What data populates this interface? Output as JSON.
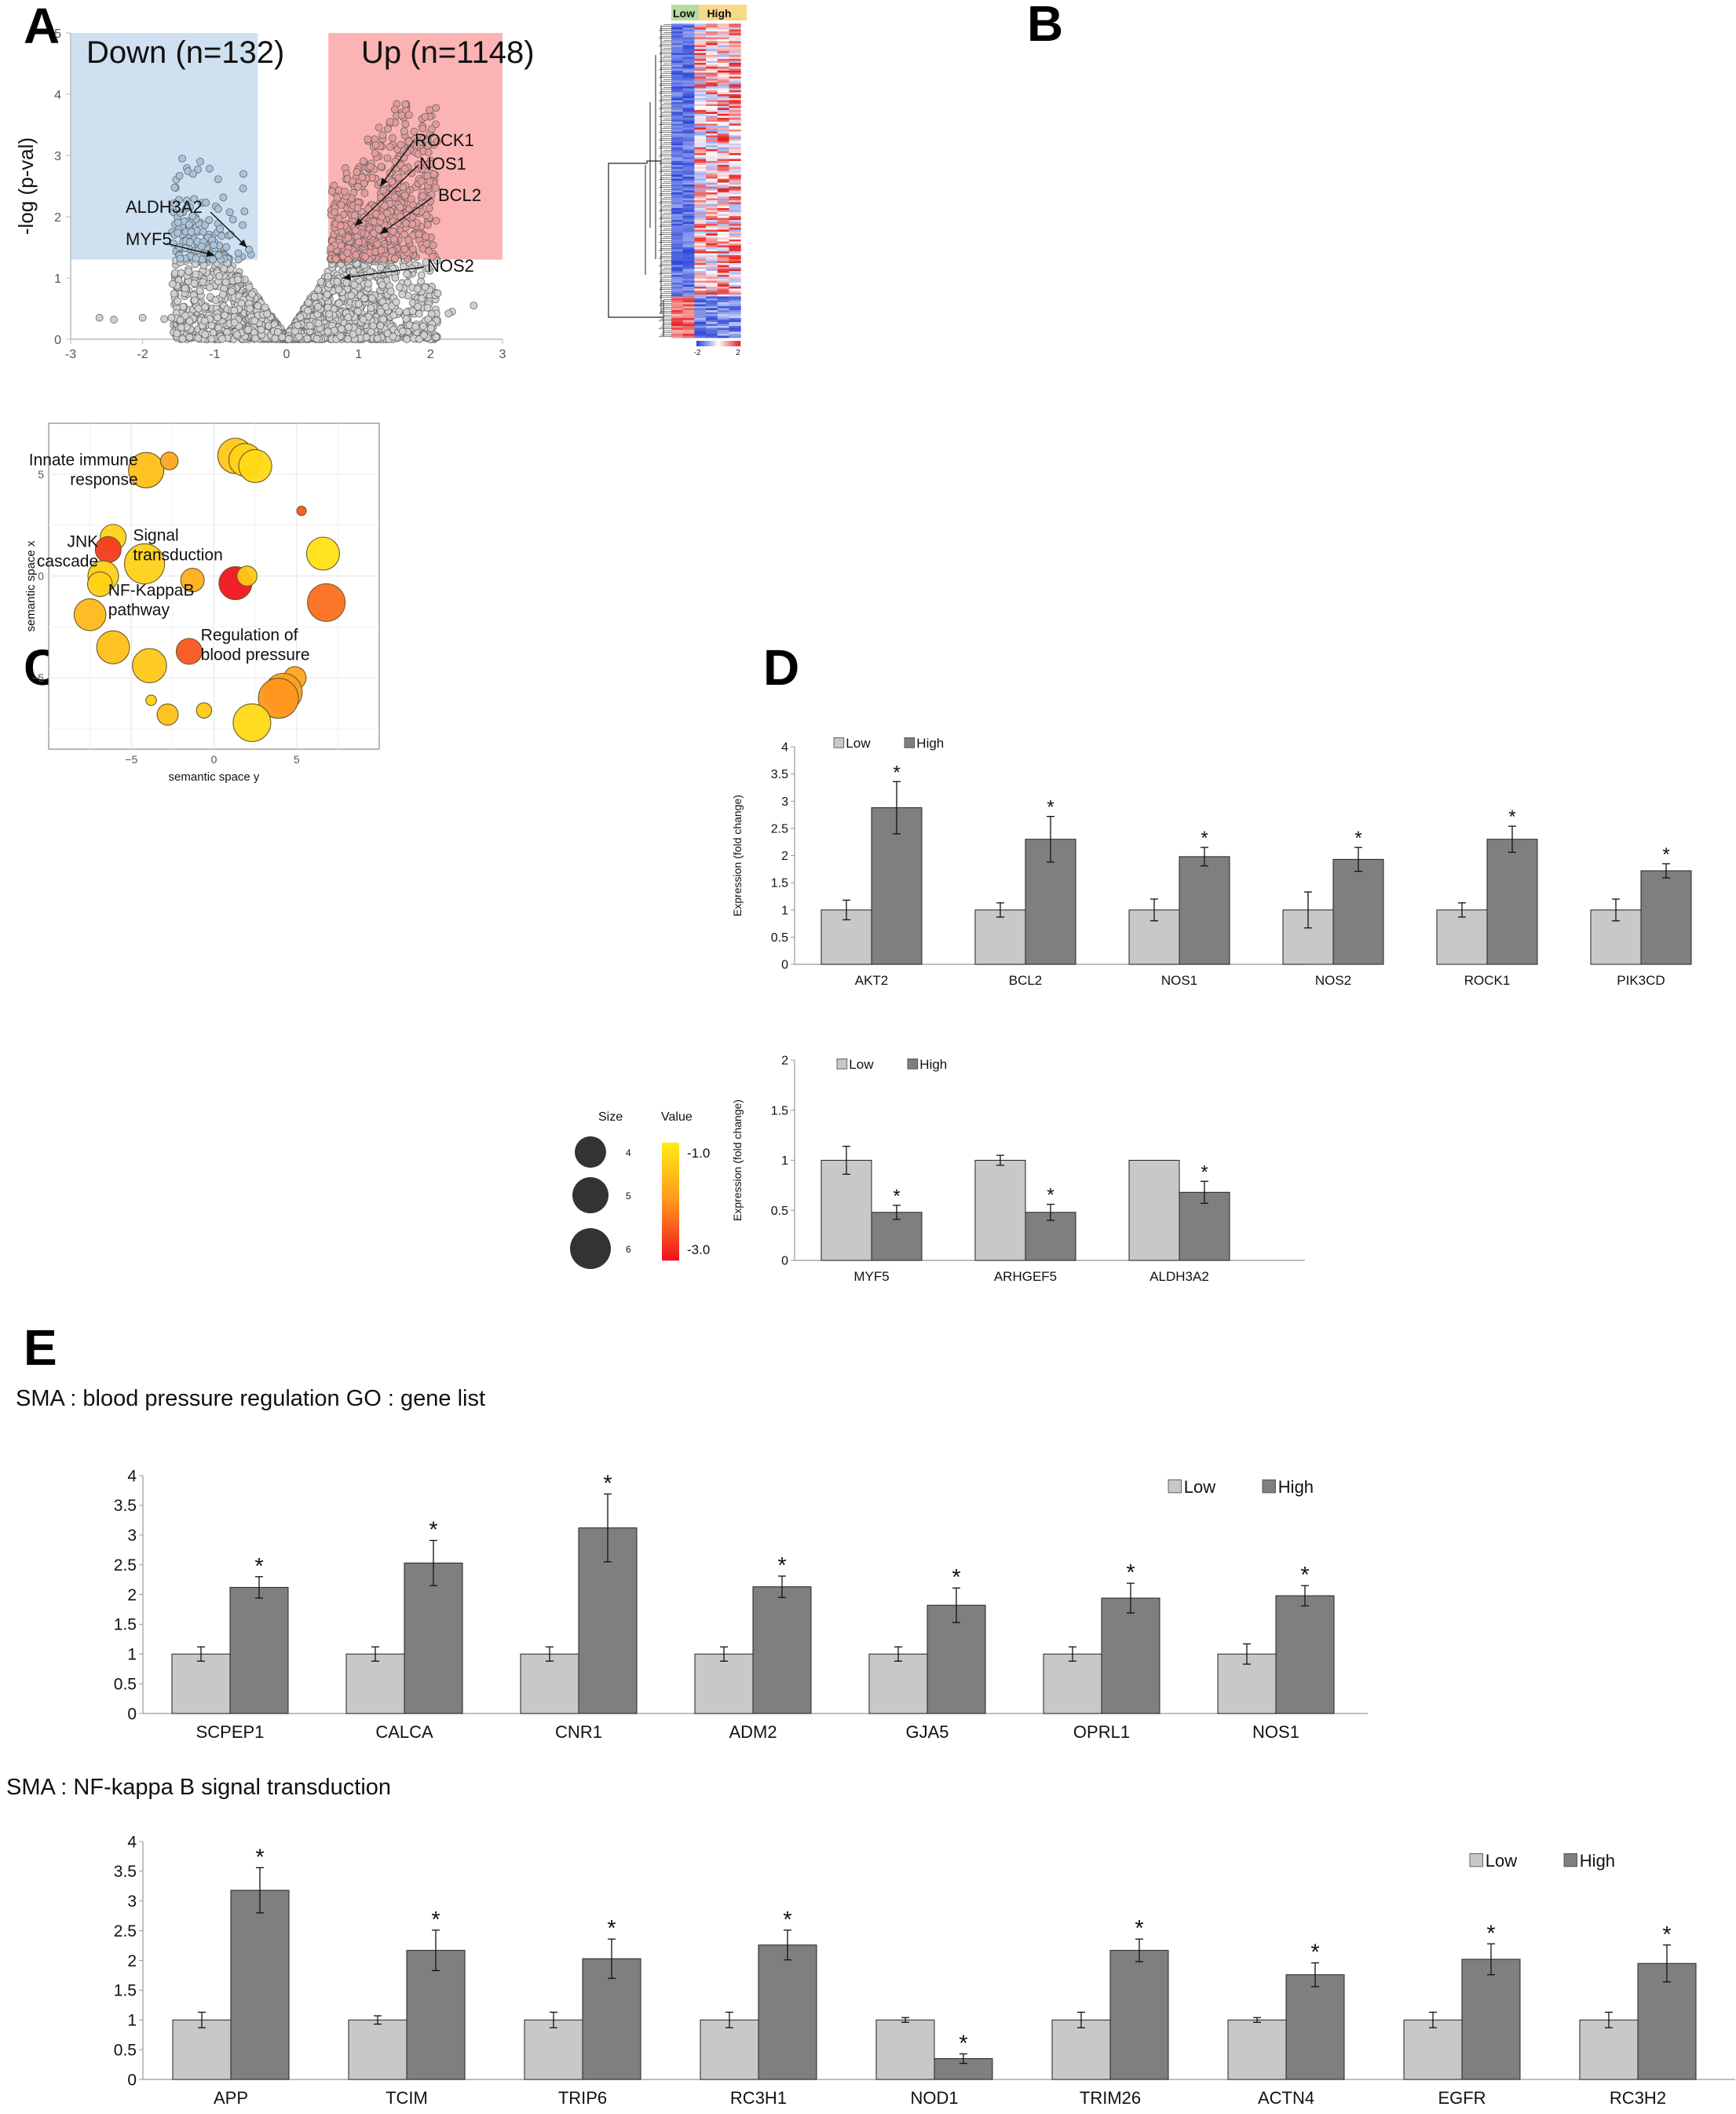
{
  "panels": {
    "a": "A",
    "b": "B",
    "c": "C",
    "d": "D",
    "e": "E"
  },
  "chart_data": [
    {
      "id": "A",
      "type": "scatter",
      "title": "",
      "xlabel": "",
      "ylabel": "-log (p-val)",
      "xlim": [
        -3,
        3
      ],
      "ylim": [
        0,
        5
      ],
      "xticks": [
        "-3",
        "-2",
        "-1",
        "0",
        "1",
        "2",
        "3"
      ],
      "yticks": [
        "0",
        "1",
        "2",
        "3",
        "4",
        "5"
      ],
      "regions": [
        {
          "label": "Down (n=132)",
          "x": [
            -3,
            -0.4
          ],
          "y": [
            1.3,
            5
          ],
          "color": "#cfe0f1"
        },
        {
          "label": "Up (n=1148)",
          "x": [
            0.58,
            3
          ],
          "y": [
            1.3,
            5
          ],
          "color": "#fbb3b3"
        }
      ],
      "annotations": [
        {
          "text": "ROCK1",
          "x": 1.3,
          "y": 2.5
        },
        {
          "text": "NOS1",
          "x": 0.95,
          "y": 1.85
        },
        {
          "text": "BCL2",
          "x": 1.3,
          "y": 1.72
        },
        {
          "text": "NOS2",
          "x": 0.78,
          "y": 1.0
        },
        {
          "text": "ALDH3A2",
          "x": -0.55,
          "y": 1.5
        },
        {
          "text": "MYF5",
          "x": -1.0,
          "y": 1.37
        }
      ],
      "colors": {
        "grey": "#d0d0d0",
        "blue": "#a9c3dc",
        "red": "#e59a9a"
      }
    },
    {
      "id": "B",
      "type": "heatmap",
      "columns_groups": [
        "Low",
        "High"
      ],
      "colorbar": {
        "min": "-2",
        "max": "2"
      },
      "colors": {
        "low": "#2b46d8",
        "mid": "#ffffff",
        "high": "#e61e1e",
        "low_group": "#b8dba4",
        "high_group": "#f8d98a"
      }
    },
    {
      "id": "C",
      "type": "scatter",
      "xlabel": "semantic space y",
      "ylabel": "semantic space x",
      "xlim": [
        -10,
        10
      ],
      "ylim": [
        -8.5,
        7.5
      ],
      "xticks": [
        -5,
        0,
        5
      ],
      "yticks": [
        5,
        0,
        -5
      ],
      "points": [
        {
          "x": -4.1,
          "y": 5.2,
          "s": 5.8,
          "v": -1.5
        },
        {
          "x": -2.7,
          "y": 5.65,
          "s": 4.3,
          "v": -1.8
        },
        {
          "x": 1.3,
          "y": 5.9,
          "s": 5.8,
          "v": -1.4
        },
        {
          "x": 1.9,
          "y": 5.7,
          "s": 5.6,
          "v": -1.3
        },
        {
          "x": 2.5,
          "y": 5.4,
          "s": 5.6,
          "v": -1.2
        },
        {
          "x": 5.3,
          "y": 3.2,
          "s": 3.6,
          "v": -2.5
        },
        {
          "x": -6.1,
          "y": 1.9,
          "s": 5.0,
          "v": -1.3
        },
        {
          "x": -6.4,
          "y": 1.3,
          "s": 5.0,
          "v": -2.7
        },
        {
          "x": -4.2,
          "y": 0.6,
          "s": 6.2,
          "v": -1.3
        },
        {
          "x": -6.7,
          "y": 0.0,
          "s": 5.4,
          "v": -1.3
        },
        {
          "x": -6.9,
          "y": -0.4,
          "s": 4.9,
          "v": -1.3
        },
        {
          "x": -1.3,
          "y": -0.2,
          "s": 4.8,
          "v": -1.7
        },
        {
          "x": 1.3,
          "y": -0.35,
          "s": 5.6,
          "v": -3.0
        },
        {
          "x": 2.0,
          "y": 0.0,
          "s": 4.5,
          "v": -1.4
        },
        {
          "x": 6.6,
          "y": 1.1,
          "s": 5.6,
          "v": -1.1
        },
        {
          "x": 6.8,
          "y": -1.3,
          "s": 6.0,
          "v": -2.3
        },
        {
          "x": -7.5,
          "y": -1.9,
          "s": 5.5,
          "v": -1.6
        },
        {
          "x": -6.1,
          "y": -3.5,
          "s": 5.6,
          "v": -1.5
        },
        {
          "x": -1.5,
          "y": -3.7,
          "s": 5.0,
          "v": -2.5
        },
        {
          "x": -3.9,
          "y": -4.4,
          "s": 5.7,
          "v": -1.4
        },
        {
          "x": 4.9,
          "y": -5.0,
          "s": 4.7,
          "v": -1.8
        },
        {
          "x": 4.2,
          "y": -5.7,
          "s": 6.0,
          "v": -1.9
        },
        {
          "x": 3.9,
          "y": -6.0,
          "s": 6.2,
          "v": -2.0
        },
        {
          "x": -3.8,
          "y": -6.1,
          "s": 3.7,
          "v": -1.3
        },
        {
          "x": -0.6,
          "y": -6.6,
          "s": 4.1,
          "v": -1.4
        },
        {
          "x": -2.8,
          "y": -6.8,
          "s": 4.6,
          "v": -1.5
        },
        {
          "x": 2.3,
          "y": -7.2,
          "s": 6.0,
          "v": -1.2
        }
      ],
      "labels": [
        {
          "lines": [
            "Innate immune",
            "response"
          ],
          "x": -4.6,
          "y": 5.2
        },
        {
          "lines": [
            "Signal",
            "transduction"
          ],
          "x": -4.9,
          "y": 1.5
        },
        {
          "lines": [
            "JNK",
            "cascade"
          ],
          "x": -7.0,
          "y": 1.2
        },
        {
          "lines": [
            "NF-KappaB",
            "pathway"
          ],
          "x": -6.4,
          "y": -1.2
        },
        {
          "lines": [
            "Regulation of",
            "blood pressure"
          ],
          "x": -0.8,
          "y": -3.4
        }
      ],
      "size_legend": {
        "title": "Size",
        "values": [
          "4",
          "5",
          "6"
        ]
      },
      "color_legend": {
        "title": "Value",
        "max": "-1.0",
        "min": "-3.0"
      }
    },
    {
      "id": "D1",
      "type": "bar",
      "ylabel": "Expression (fold change)",
      "ylim": [
        0,
        4
      ],
      "yticks": [
        "0",
        "0.5",
        "1",
        "1.5",
        "2",
        "2.5",
        "3",
        "3.5",
        "4"
      ],
      "categories": [
        "AKT2",
        "BCL2",
        "NOS1",
        "NOS2",
        "ROCK1",
        "PIK3CD"
      ],
      "series": [
        {
          "name": "Low",
          "values": [
            1,
            1,
            1,
            1,
            1,
            1
          ],
          "err": [
            0.18,
            0.13,
            0.2,
            0.33,
            0.13,
            0.2
          ]
        },
        {
          "name": "High",
          "values": [
            2.88,
            2.3,
            1.98,
            1.93,
            2.3,
            1.72
          ],
          "err": [
            0.48,
            0.42,
            0.17,
            0.22,
            0.24,
            0.13
          ]
        }
      ],
      "sig": [
        "*",
        "*",
        "*",
        "*",
        "*",
        "*"
      ]
    },
    {
      "id": "D2",
      "type": "bar",
      "ylabel": "Expression (fold change)",
      "ylim": [
        0,
        2
      ],
      "yticks": [
        "0",
        "0.5",
        "1",
        "1.5",
        "2"
      ],
      "categories": [
        "MYF5",
        "ARHGEF5",
        "ALDH3A2"
      ],
      "series": [
        {
          "name": "Low",
          "values": [
            1,
            1,
            1
          ],
          "err": [
            0.14,
            0.05,
            0
          ]
        },
        {
          "name": "High",
          "values": [
            0.48,
            0.48,
            0.68
          ],
          "err": [
            0.07,
            0.08,
            0.11
          ]
        }
      ],
      "sig": [
        "*",
        "*",
        "*"
      ]
    },
    {
      "id": "E1",
      "type": "bar",
      "title": "SMA : blood pressure regulation GO : gene list",
      "ylim": [
        0,
        4
      ],
      "yticks": [
        "0",
        "0.5",
        "1",
        "1.5",
        "2",
        "2.5",
        "3",
        "3.5",
        "4"
      ],
      "categories": [
        "SCPEP1",
        "CALCA",
        "CNR1",
        "ADM2",
        "GJA5",
        "OPRL1",
        "NOS1"
      ],
      "series": [
        {
          "name": "Low",
          "values": [
            1,
            1,
            1,
            1,
            1,
            1,
            1
          ],
          "err": [
            0.12,
            0.12,
            0.12,
            0.12,
            0.12,
            0.12,
            0.17
          ]
        },
        {
          "name": "High",
          "values": [
            2.12,
            2.53,
            3.12,
            2.13,
            1.82,
            1.94,
            1.98
          ],
          "err": [
            0.18,
            0.38,
            0.57,
            0.18,
            0.29,
            0.25,
            0.17
          ]
        }
      ],
      "sig": [
        "*",
        "*",
        "*",
        "*",
        "*",
        "*",
        "*"
      ]
    },
    {
      "id": "E2",
      "type": "bar",
      "title": "SMA : NF-kappa B signal transduction",
      "ylim": [
        0,
        4
      ],
      "yticks": [
        "0",
        "0.5",
        "1",
        "1.5",
        "2",
        "2.5",
        "3",
        "3.5",
        "4"
      ],
      "categories": [
        "APP",
        "TCIM",
        "TRIP6",
        "RC3H1",
        "NOD1",
        "TRIM26",
        "ACTN4",
        "EGFR",
        "RC3H2"
      ],
      "series": [
        {
          "name": "Low",
          "values": [
            1,
            1,
            1,
            1,
            1,
            1,
            1,
            1,
            1
          ],
          "err": [
            0.13,
            0.07,
            0.13,
            0.13,
            0.04,
            0.13,
            0.04,
            0.13,
            0.13
          ]
        },
        {
          "name": "High",
          "values": [
            3.18,
            2.17,
            2.03,
            2.26,
            0.35,
            2.17,
            1.76,
            2.02,
            1.95
          ],
          "err": [
            0.38,
            0.34,
            0.33,
            0.25,
            0.08,
            0.19,
            0.2,
            0.26,
            0.31
          ]
        }
      ],
      "sig": [
        "*",
        "*",
        "*",
        "*",
        "*",
        "*",
        "*",
        "*",
        "*"
      ]
    }
  ]
}
